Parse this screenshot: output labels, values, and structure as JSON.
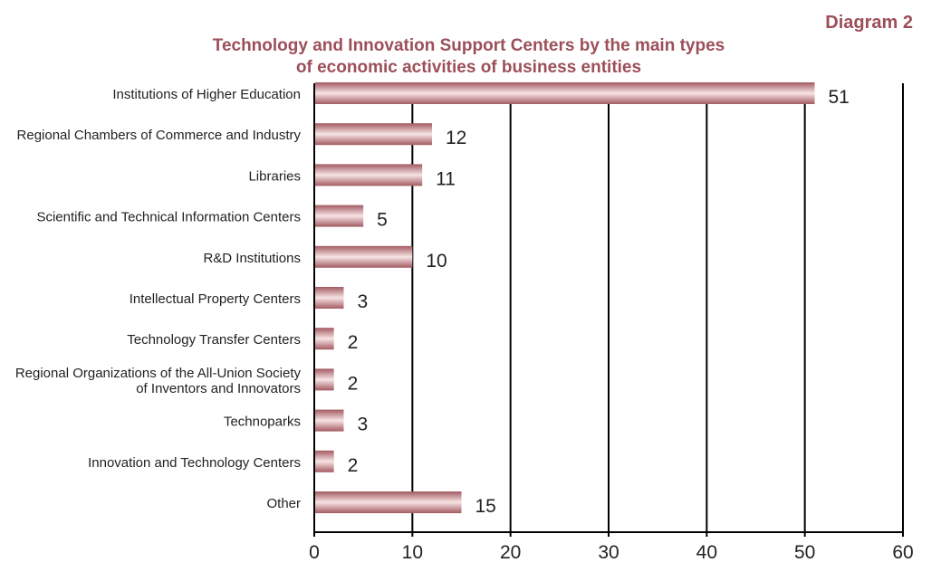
{
  "header": {
    "diagram_label": "Diagram 2",
    "title_line1": "Technology and Innovation Support Centers by the main types",
    "title_line2": "of economic activities of business entities"
  },
  "colors": {
    "title": "#9c4f58",
    "bar_dark": "#a35a62",
    "bar_light": "#f7e4e4",
    "axis": "#000000"
  },
  "chart_data": {
    "type": "bar",
    "orientation": "horizontal",
    "title": "Technology and Innovation Support Centers by the main types of economic activities of business entities",
    "xlabel": "",
    "ylabel": "",
    "xlim": [
      0,
      60
    ],
    "x_ticks": [
      "0",
      "10",
      "20",
      "30",
      "40",
      "50",
      "60"
    ],
    "grid": true,
    "legend": "none",
    "categories": [
      [
        "Institutions of Higher Education"
      ],
      [
        "Regional Chambers of Commerce and Industry"
      ],
      [
        "Libraries"
      ],
      [
        "Scientific and Technical Information Centers"
      ],
      [
        "R&D Institutions"
      ],
      [
        "Intellectual Property Centers"
      ],
      [
        "Technology Transfer Centers"
      ],
      [
        "Regional Organizations of the All-Union Society",
        "of Inventors and Innovators"
      ],
      [
        "Technoparks"
      ],
      [
        "Innovation and Technology Centers"
      ],
      [
        "Other"
      ]
    ],
    "values": [
      51,
      12,
      11,
      5,
      10,
      3,
      2,
      2,
      3,
      2,
      15
    ],
    "value_labels": [
      "51",
      "12",
      "11",
      "5",
      "10",
      "3",
      "2",
      "2",
      "3",
      "2",
      "15"
    ]
  }
}
